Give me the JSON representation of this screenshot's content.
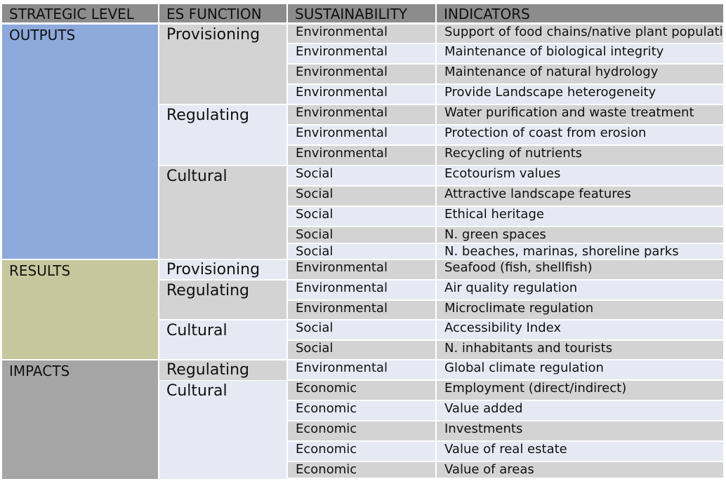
{
  "headers": {
    "strategic_level": "STRATEGIC LEVEL",
    "es_function": "ES FUNCTION",
    "sustainability": "SUSTAINABILITY",
    "indicators": "INDICATORS"
  },
  "colors": {
    "header_bg": "#8c8c8c",
    "outputs_bg": "#8eaadc",
    "results_bg": "#c6c79c",
    "impacts_bg": "#a5a5a5",
    "row_alt_dark": "#d3d3d3",
    "row_alt_light": "#e6e9f3"
  },
  "levels": [
    {
      "label": "OUTPUTS",
      "color": "#8eaadc"
    },
    {
      "label": "RESULTS",
      "color": "#c6c79c"
    },
    {
      "label": "IMPACTS",
      "color": "#a5a5a5"
    }
  ],
  "functions": [
    {
      "label": "Provisioning"
    },
    {
      "label": "Regulating"
    },
    {
      "label": "Cultural"
    },
    {
      "label": "Provisioning"
    },
    {
      "label": "Regulating"
    },
    {
      "label": "Cultural"
    },
    {
      "label": "Regulating"
    },
    {
      "label": "Cultural"
    }
  ],
  "rows": [
    {
      "sustainability": "Environmental",
      "indicator": "Support of food chains/native plant population"
    },
    {
      "sustainability": "Environmental",
      "indicator": "Maintenance of biological integrity"
    },
    {
      "sustainability": "Environmental",
      "indicator": "Maintenance of natural hydrology"
    },
    {
      "sustainability": "Environmental",
      "indicator": "Provide Landscape heterogeneity"
    },
    {
      "sustainability": "Environmental",
      "indicator": "Water purification and waste treatment"
    },
    {
      "sustainability": "Environmental",
      "indicator": "Protection of coast from erosion"
    },
    {
      "sustainability": "Environmental",
      "indicator": "Recycling of nutrients"
    },
    {
      "sustainability": "Social",
      "indicator": "Ecotourism values"
    },
    {
      "sustainability": "Social",
      "indicator": "Attractive landscape features"
    },
    {
      "sustainability": "Social",
      "indicator": "Ethical heritage"
    },
    {
      "sustainability": "Social",
      "indicator": "N. green spaces"
    },
    {
      "sustainability": "Social",
      "indicator": "N. beaches, marinas, shoreline parks"
    },
    {
      "sustainability": "Environmental",
      "indicator": "Seafood (fish, shellfish)"
    },
    {
      "sustainability": "Environmental",
      "indicator": "Air quality regulation"
    },
    {
      "sustainability": "Environmental",
      "indicator": "Microclimate regulation"
    },
    {
      "sustainability": "Social",
      "indicator": "Accessibility Index"
    },
    {
      "sustainability": "Social",
      "indicator": "N. inhabitants and tourists"
    },
    {
      "sustainability": "Environmental",
      "indicator": "Global climate regulation"
    },
    {
      "sustainability": "Economic",
      "indicator": "Employment (direct/indirect)"
    },
    {
      "sustainability": "Economic",
      "indicator": "Value added"
    },
    {
      "sustainability": "Economic",
      "indicator": "Investments"
    },
    {
      "sustainability": "Economic",
      "indicator": "Value of real estate"
    },
    {
      "sustainability": "Economic",
      "indicator": "Value of areas"
    }
  ]
}
